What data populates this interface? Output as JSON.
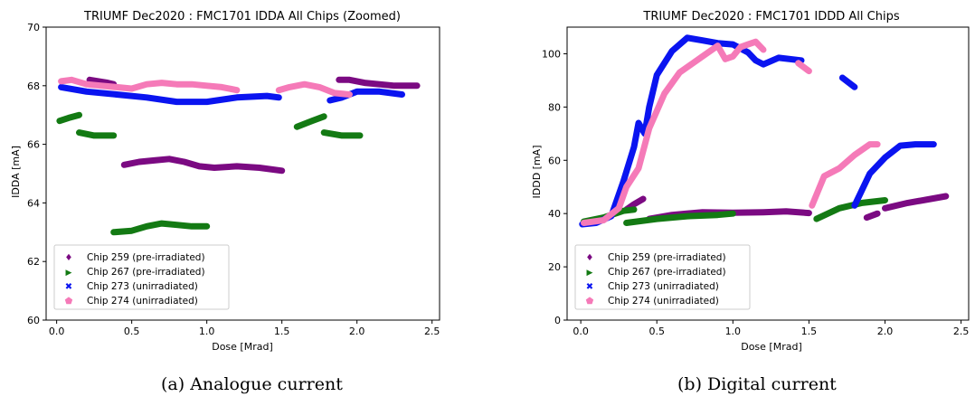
{
  "colors": {
    "chip259": "#7b0a82",
    "chip267": "#137a13",
    "chip273": "#0a14f0",
    "chip274": "#f57ab8"
  },
  "legend_labels": {
    "chip259": "Chip 259 (pre-irradiated)",
    "chip267": "Chip 267 (pre-irradiated)",
    "chip273": "Chip 273 (unirradiated)",
    "chip274": "Chip 274 (unirradiated)"
  },
  "captions": {
    "a": "(a) Analogue current",
    "b": "(b) Digital current"
  },
  "chart_data": [
    {
      "type": "scatter",
      "title": "TRIUMF Dec2020 : FMC1701 IDDA All Chips (Zoomed)",
      "xlabel": "Dose [Mrad]",
      "ylabel": "IDDA [mA]",
      "xlim": [
        -0.07,
        2.55
      ],
      "ylim": [
        60,
        70
      ],
      "xticks": [
        "0.0",
        "0.5",
        "1.0",
        "1.5",
        "2.0",
        "2.5"
      ],
      "yticks": [
        "60",
        "62",
        "64",
        "66",
        "68",
        "70"
      ],
      "legend": "lower-left",
      "grid": false,
      "series": [
        {
          "name": "Chip 259 (pre-irradiated)",
          "key": "chip259",
          "segments": [
            [
              [
                0.22,
                68.2
              ],
              [
                0.28,
                68.15
              ],
              [
                0.34,
                68.1
              ],
              [
                0.38,
                68.05
              ]
            ],
            [
              [
                0.45,
                65.3
              ],
              [
                0.55,
                65.4
              ],
              [
                0.65,
                65.45
              ],
              [
                0.75,
                65.5
              ],
              [
                0.85,
                65.4
              ],
              [
                0.95,
                65.25
              ],
              [
                1.05,
                65.2
              ],
              [
                1.2,
                65.25
              ],
              [
                1.35,
                65.2
              ],
              [
                1.5,
                65.1
              ]
            ],
            [
              [
                1.88,
                68.2
              ],
              [
                1.95,
                68.2
              ],
              [
                2.05,
                68.1
              ],
              [
                2.15,
                68.05
              ],
              [
                2.25,
                68.0
              ],
              [
                2.4,
                68.0
              ]
            ]
          ]
        },
        {
          "name": "Chip 267 (pre-irradiated)",
          "key": "chip267",
          "segments": [
            [
              [
                0.02,
                66.8
              ],
              [
                0.08,
                66.9
              ],
              [
                0.15,
                67.0
              ]
            ],
            [
              [
                0.15,
                66.4
              ],
              [
                0.25,
                66.3
              ],
              [
                0.38,
                66.3
              ]
            ],
            [
              [
                0.38,
                63.0
              ],
              [
                0.5,
                63.05
              ],
              [
                0.6,
                63.2
              ],
              [
                0.7,
                63.3
              ],
              [
                0.8,
                63.25
              ],
              [
                0.9,
                63.2
              ],
              [
                1.0,
                63.2
              ]
            ],
            [
              [
                1.6,
                66.6
              ],
              [
                1.7,
                66.8
              ],
              [
                1.78,
                66.95
              ]
            ],
            [
              [
                1.78,
                66.4
              ],
              [
                1.9,
                66.3
              ],
              [
                2.02,
                66.3
              ]
            ]
          ]
        },
        {
          "name": "Chip 273 (unirradiated)",
          "key": "chip273",
          "segments": [
            [
              [
                0.03,
                67.95
              ],
              [
                0.2,
                67.8
              ],
              [
                0.4,
                67.7
              ],
              [
                0.6,
                67.6
              ],
              [
                0.8,
                67.45
              ],
              [
                1.0,
                67.45
              ],
              [
                1.2,
                67.6
              ],
              [
                1.4,
                67.65
              ],
              [
                1.48,
                67.6
              ]
            ],
            [
              [
                1.82,
                67.5
              ],
              [
                1.9,
                67.6
              ],
              [
                2.0,
                67.8
              ],
              [
                2.15,
                67.8
              ],
              [
                2.3,
                67.7
              ]
            ]
          ]
        },
        {
          "name": "Chip 274 (unirradiated)",
          "key": "chip274",
          "segments": [
            [
              [
                0.03,
                68.15
              ],
              [
                0.1,
                68.2
              ],
              [
                0.2,
                68.05
              ],
              [
                0.3,
                68.0
              ],
              [
                0.4,
                67.95
              ],
              [
                0.5,
                67.9
              ],
              [
                0.6,
                68.05
              ],
              [
                0.7,
                68.1
              ],
              [
                0.8,
                68.05
              ],
              [
                0.9,
                68.05
              ],
              [
                1.0,
                68.0
              ],
              [
                1.1,
                67.95
              ],
              [
                1.2,
                67.85
              ]
            ],
            [
              [
                1.48,
                67.85
              ],
              [
                1.55,
                67.95
              ],
              [
                1.65,
                68.05
              ],
              [
                1.75,
                67.95
              ],
              [
                1.85,
                67.75
              ],
              [
                1.95,
                67.7
              ]
            ]
          ]
        }
      ]
    },
    {
      "type": "scatter",
      "title": "TRIUMF Dec2020 : FMC1701 IDDD All Chips",
      "xlabel": "Dose [Mrad]",
      "ylabel": "IDDD [mA]",
      "xlim": [
        -0.09,
        2.55
      ],
      "ylim": [
        0,
        110
      ],
      "xticks": [
        "0.0",
        "0.5",
        "1.0",
        "1.5",
        "2.0",
        "2.5"
      ],
      "yticks": [
        "0",
        "20",
        "40",
        "60",
        "80",
        "100"
      ],
      "legend": "lower-left",
      "grid": false,
      "series": [
        {
          "name": "Chip 259 (pre-irradiated)",
          "key": "chip259",
          "segments": [
            [
              [
                0.3,
                41.5
              ],
              [
                0.35,
                43.5
              ],
              [
                0.41,
                45.5
              ]
            ],
            [
              [
                0.45,
                38.0
              ],
              [
                0.6,
                39.5
              ],
              [
                0.8,
                40.5
              ],
              [
                1.0,
                40.3
              ],
              [
                1.2,
                40.5
              ],
              [
                1.35,
                40.8
              ],
              [
                1.5,
                40.2
              ]
            ],
            [
              [
                1.88,
                38.5
              ],
              [
                1.95,
                40.0
              ]
            ],
            [
              [
                2.0,
                42.0
              ],
              [
                2.15,
                44.0
              ],
              [
                2.3,
                45.5
              ],
              [
                2.4,
                46.5
              ]
            ]
          ]
        },
        {
          "name": "Chip 267 (pre-irradiated)",
          "key": "chip267",
          "segments": [
            [
              [
                0.02,
                37.0
              ],
              [
                0.15,
                38.5
              ],
              [
                0.28,
                41.0
              ],
              [
                0.35,
                41.5
              ]
            ],
            [
              [
                0.3,
                36.5
              ],
              [
                0.5,
                38.0
              ],
              [
                0.7,
                39.0
              ],
              [
                0.9,
                39.5
              ],
              [
                1.0,
                40.0
              ]
            ],
            [
              [
                1.55,
                38.0
              ],
              [
                1.7,
                42.0
              ],
              [
                1.85,
                44.0
              ],
              [
                2.0,
                45.0
              ]
            ]
          ]
        },
        {
          "name": "Chip 273 (unirradiated)",
          "key": "chip273",
          "segments": [
            [
              [
                0.01,
                36.0
              ],
              [
                0.1,
                36.5
              ],
              [
                0.2,
                39.0
              ],
              [
                0.28,
                52.0
              ],
              [
                0.35,
                65.0
              ],
              [
                0.38,
                74.0
              ],
              [
                0.42,
                70.0
              ],
              [
                0.45,
                80.0
              ],
              [
                0.5,
                92.0
              ],
              [
                0.6,
                101.0
              ],
              [
                0.7,
                106.0
              ],
              [
                0.8,
                105.0
              ],
              [
                0.9,
                104.0
              ],
              [
                1.0,
                103.5
              ],
              [
                1.1,
                100.5
              ],
              [
                1.15,
                97.5
              ],
              [
                1.2,
                96.0
              ],
              [
                1.3,
                98.5
              ],
              [
                1.45,
                97.5
              ]
            ],
            [
              [
                1.72,
                91.0
              ],
              [
                1.8,
                87.5
              ]
            ],
            [
              [
                1.8,
                43.0
              ],
              [
                1.9,
                55.0
              ],
              [
                2.0,
                61.0
              ],
              [
                2.1,
                65.5
              ],
              [
                2.2,
                66.0
              ],
              [
                2.32,
                66.0
              ]
            ]
          ]
        },
        {
          "name": "Chip 274 (unirradiated)",
          "key": "chip274",
          "segments": [
            [
              [
                0.02,
                36.5
              ],
              [
                0.15,
                37.5
              ],
              [
                0.25,
                42.0
              ],
              [
                0.3,
                50.0
              ],
              [
                0.38,
                57.0
              ],
              [
                0.45,
                72.0
              ],
              [
                0.55,
                85.0
              ],
              [
                0.65,
                93.0
              ],
              [
                0.8,
                99.0
              ],
              [
                0.9,
                103.0
              ],
              [
                0.95,
                98.0
              ],
              [
                1.0,
                99.0
              ],
              [
                1.05,
                102.5
              ],
              [
                1.1,
                103.5
              ],
              [
                1.15,
                104.5
              ],
              [
                1.2,
                101.5
              ]
            ],
            [
              [
                1.43,
                96.5
              ],
              [
                1.5,
                93.5
              ]
            ],
            [
              [
                1.52,
                43.0
              ],
              [
                1.6,
                54.0
              ],
              [
                1.7,
                57.0
              ],
              [
                1.8,
                62.0
              ],
              [
                1.9,
                66.0
              ],
              [
                1.95,
                66.0
              ]
            ]
          ]
        }
      ]
    }
  ]
}
